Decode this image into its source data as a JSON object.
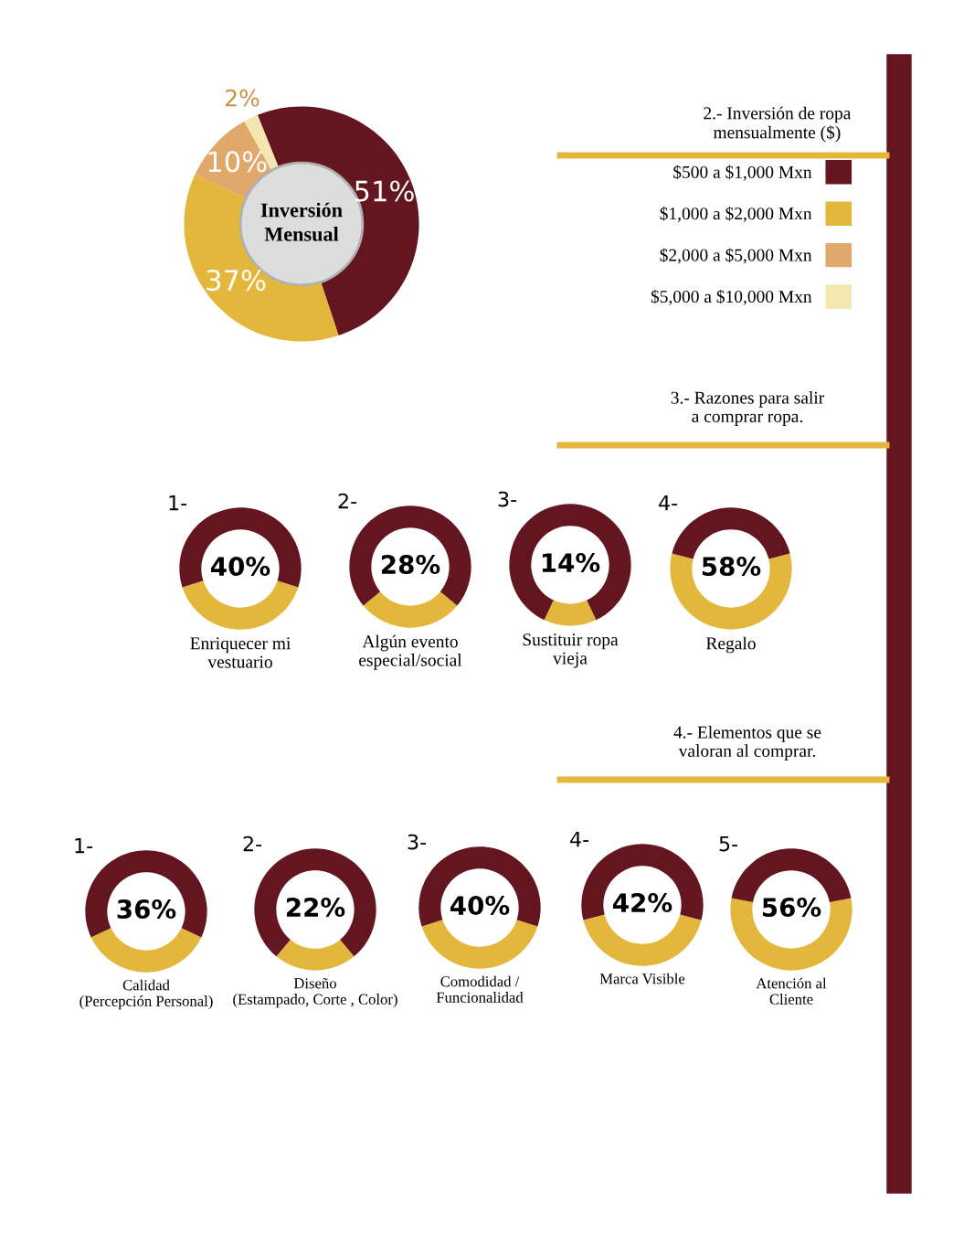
{
  "chart_data": [
    {
      "type": "donut",
      "categories": [
        "$500 a $1,000 Mxn",
        "$1,000 a $2,000 Mxn",
        "$2,000 a $5,000 Mxn",
        "$5,000 a $10,000 Mxn"
      ],
      "values": [
        51,
        37,
        10,
        2
      ],
      "colors": [
        "#63161f",
        "#e3b73c",
        "#e0a86a",
        "#f3e6b0"
      ],
      "value_labels": [
        "51%",
        "37%",
        "10%",
        "2%"
      ],
      "legend": "right",
      "legend_title": "2.- Inversión de ropa\nmensualmente ($)",
      "annotations": [
        "Inversión\nMensual"
      ]
    },
    {
      "type": "donut",
      "title": "Enriquecer mi\nvestuario",
      "categories": [
        null,
        null
      ],
      "values": [
        40,
        60
      ],
      "colors": [
        "#e3b73c",
        "#63161f"
      ],
      "annotations": [
        "3.- Razones para salir\na comprar ropa.",
        "40%",
        "1-"
      ]
    },
    {
      "type": "donut",
      "title": "Algún evento\nespecial/social",
      "categories": [
        null,
        null
      ],
      "values": [
        28,
        72
      ],
      "colors": [
        "#e3b73c",
        "#63161f"
      ],
      "annotations": [
        "28%",
        "2-"
      ]
    },
    {
      "type": "donut",
      "title": "Sustituir ropa\nvieja",
      "categories": [
        null,
        null
      ],
      "values": [
        14,
        86
      ],
      "colors": [
        "#e3b73c",
        "#63161f"
      ],
      "annotations": [
        "14%",
        "3-"
      ]
    },
    {
      "type": "donut",
      "title": "Regalo",
      "categories": [
        null,
        null
      ],
      "values": [
        58,
        42
      ],
      "colors": [
        "#e3b73c",
        "#63161f"
      ],
      "annotations": [
        "58%",
        "4-"
      ]
    },
    {
      "type": "donut",
      "title": "Calidad\n(Percepción Personal)",
      "categories": [
        null,
        null
      ],
      "values": [
        36,
        64
      ],
      "colors": [
        "#e3b73c",
        "#63161f"
      ],
      "annotations": [
        "4.- Elementos que se\nvaloran al comprar.",
        "36%",
        "1-"
      ]
    },
    {
      "type": "donut",
      "title": "Diseño\n(Estampado, Corte , Color)",
      "categories": [
        null,
        null
      ],
      "values": [
        22,
        78
      ],
      "colors": [
        "#e3b73c",
        "#63161f"
      ],
      "annotations": [
        "22%",
        "2-"
      ]
    },
    {
      "type": "donut",
      "title": "Comodidad /\nFuncionalidad",
      "categories": [
        null,
        null
      ],
      "values": [
        40,
        60
      ],
      "colors": [
        "#e3b73c",
        "#63161f"
      ],
      "annotations": [
        "40%",
        "3-"
      ]
    },
    {
      "type": "donut",
      "title": "Marca Visible",
      "categories": [
        null,
        null
      ],
      "values": [
        42,
        58
      ],
      "colors": [
        "#e3b73c",
        "#63161f"
      ],
      "annotations": [
        "42%",
        "4-"
      ]
    },
    {
      "type": "donut",
      "title": "Atención al\nCliente",
      "categories": [
        null,
        null
      ],
      "values": [
        56,
        44
      ],
      "colors": [
        "#e3b73c",
        "#63161f"
      ],
      "annotations": [
        "56%",
        "5-"
      ]
    }
  ]
}
